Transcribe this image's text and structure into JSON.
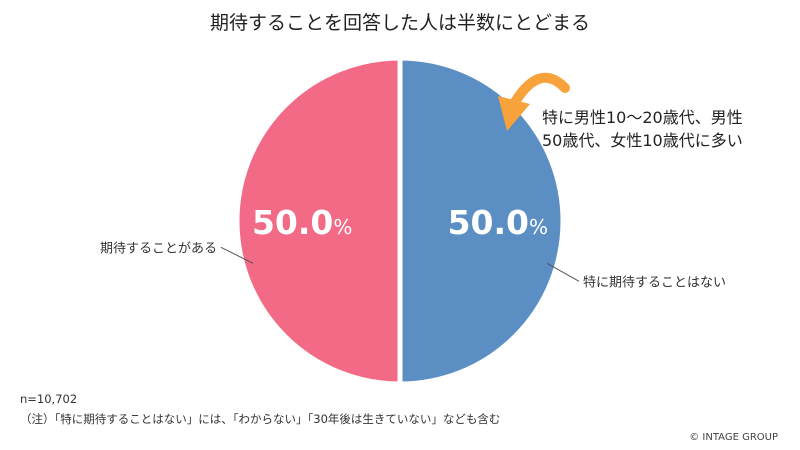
{
  "title": "期待することを回答した人は半数にとどまる",
  "chart_data": {
    "type": "pie",
    "title": "期待することを回答した人は半数にとどまる",
    "unit": "%",
    "slices": [
      {
        "label": "特に期待することはない",
        "value": 50.0,
        "display": "50.0",
        "color": "#5b8fc3"
      },
      {
        "label": "期待することがある",
        "value": 50.0,
        "display": "50.0",
        "color": "#f26a85"
      }
    ]
  },
  "annotation": {
    "lines": [
      "特に男性10～20歳代、男性",
      "50歳代、女性10歳代に多い"
    ],
    "arrow_color": "#f7a23a"
  },
  "sample_size": "n=10,702",
  "footnote": "（注）「特に期待することはない」には、「わからない」「30年後は生きていない」なども含む",
  "copyright": "© INTAGE GROUP"
}
